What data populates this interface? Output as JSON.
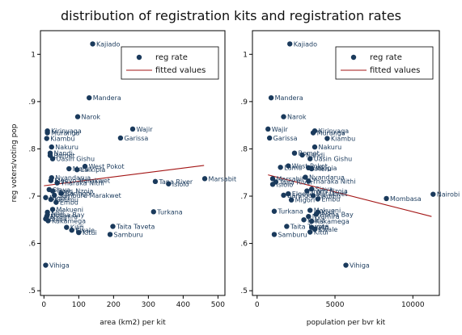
{
  "title": "distribution of registration kits and registration rates",
  "colors": {
    "point": "#1a3a5c",
    "label": "#1a3a5c",
    "fit": "#a31515",
    "frame": "#000000"
  },
  "chart_data": [
    {
      "type": "scatter",
      "xlabel": "area (km2) per kit",
      "ylabel": "reg voters/voting pop",
      "xlim": [
        -10,
        520
      ],
      "ylim": [
        0.49,
        1.05
      ],
      "xticks": [
        "0",
        "100",
        "200",
        "300",
        "400",
        "500"
      ],
      "xtick_values": [
        0,
        100,
        200,
        300,
        400,
        500
      ],
      "yticks": [
        ".5",
        ".6",
        ".7",
        ".8",
        ".9",
        "1"
      ],
      "ytick_values": [
        0.5,
        0.6,
        0.7,
        0.8,
        0.9,
        1.0
      ],
      "legend": {
        "position": "top-right",
        "items": [
          "reg rate",
          "fitted values"
        ]
      },
      "fitted": {
        "x": [
          0,
          460
        ],
        "y": [
          0.722,
          0.765
        ]
      },
      "series": [
        {
          "name": "reg rate",
          "points": [
            {
              "label": "Kajiado",
              "x": 140,
              "y": 1.022
            },
            {
              "label": "Mandera",
              "x": 130,
              "y": 0.908
            },
            {
              "label": "Narok",
              "x": 97,
              "y": 0.868
            },
            {
              "label": "Wajir",
              "x": 255,
              "y": 0.842
            },
            {
              "label": "Garissa",
              "x": 220,
              "y": 0.823
            },
            {
              "label": "Kirinyaga",
              "x": 10,
              "y": 0.838
            },
            {
              "label": "Muranga",
              "x": 10,
              "y": 0.834
            },
            {
              "label": "Kiambu",
              "x": 8,
              "y": 0.822
            },
            {
              "label": "Nakuru",
              "x": 22,
              "y": 0.804
            },
            {
              "label": "Nandi",
              "x": 18,
              "y": 0.791
            },
            {
              "label": "Bomet",
              "x": 18,
              "y": 0.786
            },
            {
              "label": "Uasin Gishu",
              "x": 25,
              "y": 0.779
            },
            {
              "label": "West Pokot",
              "x": 118,
              "y": 0.763
            },
            {
              "label": "Meru",
              "x": 72,
              "y": 0.758
            },
            {
              "label": "Laikipia",
              "x": 95,
              "y": 0.756
            },
            {
              "label": "Nyandarua",
              "x": 22,
              "y": 0.739
            },
            {
              "label": "Marsabit",
              "x": 462,
              "y": 0.737
            },
            {
              "label": "Tana River",
              "x": 320,
              "y": 0.731
            },
            {
              "label": "Isiolo",
              "x": 358,
              "y": 0.726
            },
            {
              "label": "Elgeyo Marakwet",
              "x": 20,
              "y": 0.733
            },
            {
              "label": "Tharaka Nithi",
              "x": 38,
              "y": 0.728
            },
            {
              "label": "Siaya",
              "x": 15,
              "y": 0.714
            },
            {
              "label": "Trans Nzoia",
              "x": 25,
              "y": 0.711
            },
            {
              "label": "Baringo",
              "x": 50,
              "y": 0.706
            },
            {
              "label": "Samburu Marakwet",
              "x": 30,
              "y": 0.702
            },
            {
              "label": "Migori",
              "x": 5,
              "y": 0.697
            },
            {
              "label": "Kisumu",
              "x": 20,
              "y": 0.693
            },
            {
              "label": "Embu",
              "x": 35,
              "y": 0.687
            },
            {
              "label": "Turkana",
              "x": 315,
              "y": 0.667
            },
            {
              "label": "Makueni",
              "x": 25,
              "y": 0.672
            },
            {
              "label": "Kisii",
              "x": 10,
              "y": 0.666
            },
            {
              "label": "Homa Bay",
              "x": 10,
              "y": 0.661
            },
            {
              "label": "Nyamira",
              "x": 8,
              "y": 0.657
            },
            {
              "label": "Kakamega",
              "x": 12,
              "y": 0.648
            },
            {
              "label": "Busia",
              "x": 5,
              "y": 0.652
            },
            {
              "label": "Kilifi",
              "x": 65,
              "y": 0.634
            },
            {
              "label": "Kwale",
              "x": 80,
              "y": 0.628
            },
            {
              "label": "Kitui",
              "x": 100,
              "y": 0.623
            },
            {
              "label": "Taita Taveta",
              "x": 198,
              "y": 0.636
            },
            {
              "label": "Samburu",
              "x": 190,
              "y": 0.619
            },
            {
              "label": "Vihiga",
              "x": 5,
              "y": 0.554
            }
          ]
        }
      ]
    },
    {
      "type": "scatter",
      "xlabel": "population per bvr kit",
      "ylabel": "",
      "xlim": [
        -300,
        11700
      ],
      "ylim": [
        0.49,
        1.05
      ],
      "xticks": [
        "0",
        "5000",
        "10000"
      ],
      "xtick_values": [
        0,
        5000,
        10000
      ],
      "yticks": [
        ".5",
        ".6",
        ".7",
        ".8",
        ".9",
        "1"
      ],
      "ytick_values": [
        0.5,
        0.6,
        0.7,
        0.8,
        0.9,
        1.0
      ],
      "legend": {
        "position": "top-right",
        "items": [
          "reg rate",
          "fitted values"
        ]
      },
      "fitted": {
        "x": [
          700,
          11200
        ],
        "y": [
          0.745,
          0.657
        ]
      },
      "series": [
        {
          "name": "reg rate",
          "points": [
            {
              "label": "Kajiado",
              "x": 2100,
              "y": 1.022
            },
            {
              "label": "Mandera",
              "x": 900,
              "y": 0.908
            },
            {
              "label": "Narok",
              "x": 1700,
              "y": 0.868
            },
            {
              "label": "Wajir",
              "x": 700,
              "y": 0.842
            },
            {
              "label": "Garissa",
              "x": 800,
              "y": 0.823
            },
            {
              "label": "Kirinyaga",
              "x": 3700,
              "y": 0.838
            },
            {
              "label": "Muranga",
              "x": 3600,
              "y": 0.834
            },
            {
              "label": "Kiambu",
              "x": 4500,
              "y": 0.822
            },
            {
              "label": "Nakuru",
              "x": 3700,
              "y": 0.804
            },
            {
              "label": "Bomet",
              "x": 2400,
              "y": 0.791
            },
            {
              "label": "Nandi",
              "x": 2900,
              "y": 0.787
            },
            {
              "label": "Uasin Gishu",
              "x": 3400,
              "y": 0.779
            },
            {
              "label": "Laikipia",
              "x": 3300,
              "y": 0.76
            },
            {
              "label": "Meru",
              "x": 3500,
              "y": 0.758
            },
            {
              "label": "West Pokot",
              "x": 2000,
              "y": 0.764
            },
            {
              "label": "Lamu",
              "x": 1500,
              "y": 0.761
            },
            {
              "label": "Marsabit",
              "x": 1000,
              "y": 0.737
            },
            {
              "label": "Tana River",
              "x": 1200,
              "y": 0.73
            },
            {
              "label": "Isiolo",
              "x": 1000,
              "y": 0.725
            },
            {
              "label": "Nyandarua",
              "x": 3100,
              "y": 0.74
            },
            {
              "label": "Tharaka Nithi",
              "x": 3300,
              "y": 0.732
            },
            {
              "label": "Elgeyo Marakwet",
              "x": 2000,
              "y": 0.705
            },
            {
              "label": "Trans Nzoia",
              "x": 3200,
              "y": 0.711
            },
            {
              "label": "Siaya",
              "x": 3500,
              "y": 0.715
            },
            {
              "label": "Baringo",
              "x": 1700,
              "y": 0.702
            },
            {
              "label": "Migori",
              "x": 2200,
              "y": 0.692
            },
            {
              "label": "Kisumu",
              "x": 3600,
              "y": 0.701
            },
            {
              "label": "Embu",
              "x": 3900,
              "y": 0.694
            },
            {
              "label": "Mombasa",
              "x": 8300,
              "y": 0.695
            },
            {
              "label": "Nairobi",
              "x": 11300,
              "y": 0.704
            },
            {
              "label": "Turkana",
              "x": 1100,
              "y": 0.668
            },
            {
              "label": "Makueni",
              "x": 3400,
              "y": 0.67
            },
            {
              "label": "Kisii",
              "x": 3900,
              "y": 0.666
            },
            {
              "label": "Homa Bay",
              "x": 3800,
              "y": 0.662
            },
            {
              "label": "Nyamira",
              "x": 3300,
              "y": 0.657
            },
            {
              "label": "Busia",
              "x": 3000,
              "y": 0.65
            },
            {
              "label": "Kakamega",
              "x": 3500,
              "y": 0.647
            },
            {
              "label": "Taita Taveta",
              "x": 1900,
              "y": 0.636
            },
            {
              "label": "Kilifi",
              "x": 3500,
              "y": 0.634
            },
            {
              "label": "Kwale",
              "x": 3700,
              "y": 0.63
            },
            {
              "label": "Kitui",
              "x": 3400,
              "y": 0.624
            },
            {
              "label": "Samburu",
              "x": 1100,
              "y": 0.619
            },
            {
              "label": "Vihiga",
              "x": 5700,
              "y": 0.554
            }
          ]
        }
      ]
    }
  ]
}
